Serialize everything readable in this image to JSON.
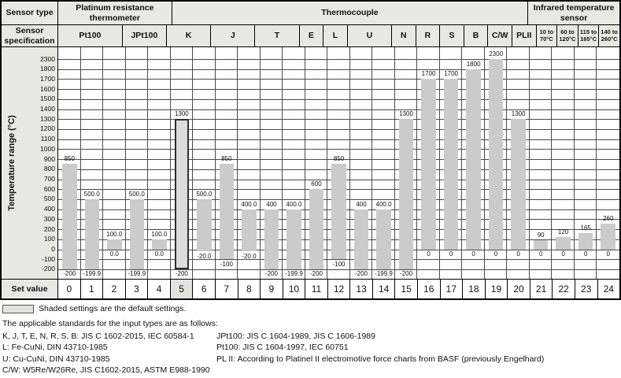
{
  "header": {
    "sensor_type_label": "Sensor type",
    "sensor_spec_label": "Sensor specification",
    "groups": [
      {
        "label": "Platinum resistance thermometer",
        "span": 5
      },
      {
        "label": "Thermocouple",
        "span": 16
      },
      {
        "label": "Infrared temperature sensor",
        "span": 4
      }
    ],
    "specs": [
      {
        "label": "Pt100",
        "span": 3,
        "small": false
      },
      {
        "label": "JPt100",
        "span": 2,
        "small": false
      },
      {
        "label": "K",
        "span": 2,
        "small": false
      },
      {
        "label": "J",
        "span": 2,
        "small": false
      },
      {
        "label": "T",
        "span": 2,
        "small": false
      },
      {
        "label": "E",
        "span": 1,
        "small": false
      },
      {
        "label": "L",
        "span": 1,
        "small": false
      },
      {
        "label": "U",
        "span": 2,
        "small": false
      },
      {
        "label": "N",
        "span": 1,
        "small": false
      },
      {
        "label": "R",
        "span": 1,
        "small": false
      },
      {
        "label": "S",
        "span": 1,
        "small": false
      },
      {
        "label": "B",
        "span": 1,
        "small": false
      },
      {
        "label": "C/W",
        "span": 1,
        "small": false
      },
      {
        "label": "PLII",
        "span": 1,
        "small": false
      },
      {
        "label": "10 to 70°C",
        "span": 1,
        "small": true
      },
      {
        "label": "60 to 120°C",
        "span": 1,
        "small": true
      },
      {
        "label": "115 to 165°C",
        "span": 1,
        "small": true
      },
      {
        "label": "140 to 260°C",
        "span": 1,
        "small": true
      }
    ]
  },
  "chart_data": {
    "type": "bar",
    "ylabel": "Temperature range (°C)",
    "y_ticks": [
      2300,
      1800,
      1700,
      1600,
      1500,
      1400,
      1300,
      1200,
      1100,
      1000,
      900,
      800,
      700,
      600,
      500,
      400,
      300,
      200,
      100,
      0,
      -100,
      -200
    ],
    "axis_scale_note": "non-linear axis: one gridline interval covers 1800 to 2300; all other intervals are 100 degrees from -200 to 1800",
    "grid": true,
    "bars": [
      {
        "set_value": "0",
        "spec": "Pt100",
        "low": -200,
        "high": 850,
        "low_label": "-200",
        "high_label": "850",
        "default": false
      },
      {
        "set_value": "1",
        "spec": "Pt100",
        "low": -199.9,
        "high": 500,
        "low_label": "-199.9",
        "high_label": "500.0",
        "default": false
      },
      {
        "set_value": "2",
        "spec": "Pt100",
        "low": 0,
        "high": 100,
        "low_label": "0.0",
        "high_label": "100.0",
        "default": false
      },
      {
        "set_value": "3",
        "spec": "JPt100",
        "low": -199.9,
        "high": 500,
        "low_label": "-199.9",
        "high_label": "500.0",
        "default": false
      },
      {
        "set_value": "4",
        "spec": "JPt100",
        "low": 0,
        "high": 100,
        "low_label": "0.0",
        "high_label": "100.0",
        "default": false
      },
      {
        "set_value": "5",
        "spec": "K",
        "low": -200,
        "high": 1300,
        "low_label": "-200",
        "high_label": "1300",
        "default": true
      },
      {
        "set_value": "6",
        "spec": "K",
        "low": -20,
        "high": 500,
        "low_label": "-20.0",
        "high_label": "500.0",
        "default": false
      },
      {
        "set_value": "7",
        "spec": "J",
        "low": -100,
        "high": 850,
        "low_label": "-100",
        "high_label": "850",
        "default": false
      },
      {
        "set_value": "8",
        "spec": "J",
        "low": -20,
        "high": 400,
        "low_label": "-20.0",
        "high_label": "400.0",
        "default": false
      },
      {
        "set_value": "9",
        "spec": "T",
        "low": -200,
        "high": 400,
        "low_label": "-200",
        "high_label": "400",
        "default": false
      },
      {
        "set_value": "10",
        "spec": "T",
        "low": -199.9,
        "high": 400,
        "low_label": "-199.9",
        "high_label": "400.0",
        "default": false
      },
      {
        "set_value": "11",
        "spec": "E",
        "low": -200,
        "high": 600,
        "low_label": "-200",
        "high_label": "600",
        "default": false
      },
      {
        "set_value": "12",
        "spec": "L",
        "low": -100,
        "high": 850,
        "low_label": "-100",
        "high_label": "850",
        "default": false
      },
      {
        "set_value": "13",
        "spec": "U",
        "low": -200,
        "high": 400,
        "low_label": "-200",
        "high_label": "400",
        "default": false
      },
      {
        "set_value": "14",
        "spec": "U",
        "low": -199.9,
        "high": 400,
        "low_label": "-199.9",
        "high_label": "400.0",
        "default": false
      },
      {
        "set_value": "15",
        "spec": "N",
        "low": -200,
        "high": 1300,
        "low_label": "-200",
        "high_label": "1300",
        "default": false
      },
      {
        "set_value": "16",
        "spec": "R",
        "low": 0,
        "high": 1700,
        "low_label": "0",
        "high_label": "1700",
        "default": false
      },
      {
        "set_value": "17",
        "spec": "S",
        "low": 0,
        "high": 1700,
        "low_label": "0",
        "high_label": "1700",
        "default": false
      },
      {
        "set_value": "18",
        "spec": "B",
        "low": 0,
        "high": 1800,
        "low_label": "0",
        "high_label": "1800",
        "default": false
      },
      {
        "set_value": "19",
        "spec": "C/W",
        "low": 0,
        "high": 2300,
        "low_label": "0",
        "high_label": "2300",
        "default": false
      },
      {
        "set_value": "20",
        "spec": "PLII",
        "low": 0,
        "high": 1300,
        "low_label": "0",
        "high_label": "1300",
        "default": false
      },
      {
        "set_value": "21",
        "spec": "10 to 70°C",
        "low": 0,
        "high": 90,
        "low_label": "0",
        "high_label": "90",
        "default": false
      },
      {
        "set_value": "22",
        "spec": "60 to 120°C",
        "low": 0,
        "high": 120,
        "low_label": "0",
        "high_label": "120",
        "default": false
      },
      {
        "set_value": "23",
        "spec": "115 to 165°C",
        "low": 0,
        "high": 165,
        "low_label": "0",
        "high_label": "165",
        "default": false
      },
      {
        "set_value": "24",
        "spec": "140 to 260°C",
        "low": 0,
        "high": 260,
        "low_label": "0",
        "high_label": "260",
        "default": false
      }
    ]
  },
  "set_value_row": {
    "label": "Set value",
    "default_value": "5"
  },
  "legend": {
    "text": "Shaded settings are the default settings."
  },
  "footnotes": {
    "title": "The applicable standards for the input types are as follows:",
    "left": [
      "K, J, T, E, N, R, S, B: JIS C 1602-2015, IEC 60584-1",
      "L: Fe-CuNi, DIN 43710-1985",
      "U: Cu-CuNi, DIN 43710-1985",
      "C/W: W5Re/W26Re, JIS C1602-2015, ASTM E988-1990"
    ],
    "right": [
      "JPt100: JIS C 1604-1989, JIS C 1606-1989",
      "Pt100: JIS C 1604-1997, IEC 60751",
      "PL II: According to Platinel II electromotive force charts from BASF (previously Engelhard)"
    ]
  },
  "colors": {
    "header_bg": "#e8e8e5",
    "bar_fill": "#cbcbcb",
    "default_bar_fill": "#dcdcdc",
    "default_bar_border": "#2e2e2e",
    "grid_line": "#4a4a4a",
    "table_border": "#000000",
    "default_cell_bg": "#e2e2df"
  }
}
